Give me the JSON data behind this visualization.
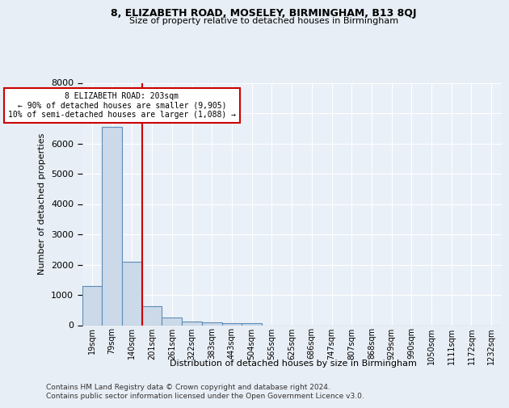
{
  "title1": "8, ELIZABETH ROAD, MOSELEY, BIRMINGHAM, B13 8QJ",
  "title2": "Size of property relative to detached houses in Birmingham",
  "xlabel": "Distribution of detached houses by size in Birmingham",
  "ylabel": "Number of detached properties",
  "categories": [
    "19sqm",
    "79sqm",
    "140sqm",
    "201sqm",
    "261sqm",
    "322sqm",
    "383sqm",
    "443sqm",
    "504sqm",
    "565sqm",
    "625sqm",
    "686sqm",
    "747sqm",
    "807sqm",
    "868sqm",
    "929sqm",
    "990sqm",
    "1050sqm",
    "1111sqm",
    "1172sqm",
    "1232sqm"
  ],
  "values": [
    1300,
    6550,
    2100,
    620,
    250,
    130,
    90,
    55,
    70,
    0,
    0,
    0,
    0,
    0,
    0,
    0,
    0,
    0,
    0,
    0,
    0
  ],
  "bar_color": "#ccd9e8",
  "bar_edge_color": "#5b8db8",
  "ylim": [
    0,
    8000
  ],
  "yticks": [
    0,
    1000,
    2000,
    3000,
    4000,
    5000,
    6000,
    7000,
    8000
  ],
  "vline_x_index": 2.5,
  "property_label": "8 ELIZABETH ROAD: 203sqm",
  "pct_smaller": "90% of detached houses are smaller (9,905)",
  "pct_larger": "10% of semi-detached houses are larger (1,088)",
  "annotation_box_color": "#ffffff",
  "annotation_box_edge": "#cc0000",
  "vline_color": "#cc0000",
  "bg_color": "#e8eef5",
  "plot_bg_color": "#eaf0f8",
  "grid_color": "#ffffff",
  "footer1": "Contains HM Land Registry data © Crown copyright and database right 2024.",
  "footer2": "Contains public sector information licensed under the Open Government Licence v3.0."
}
